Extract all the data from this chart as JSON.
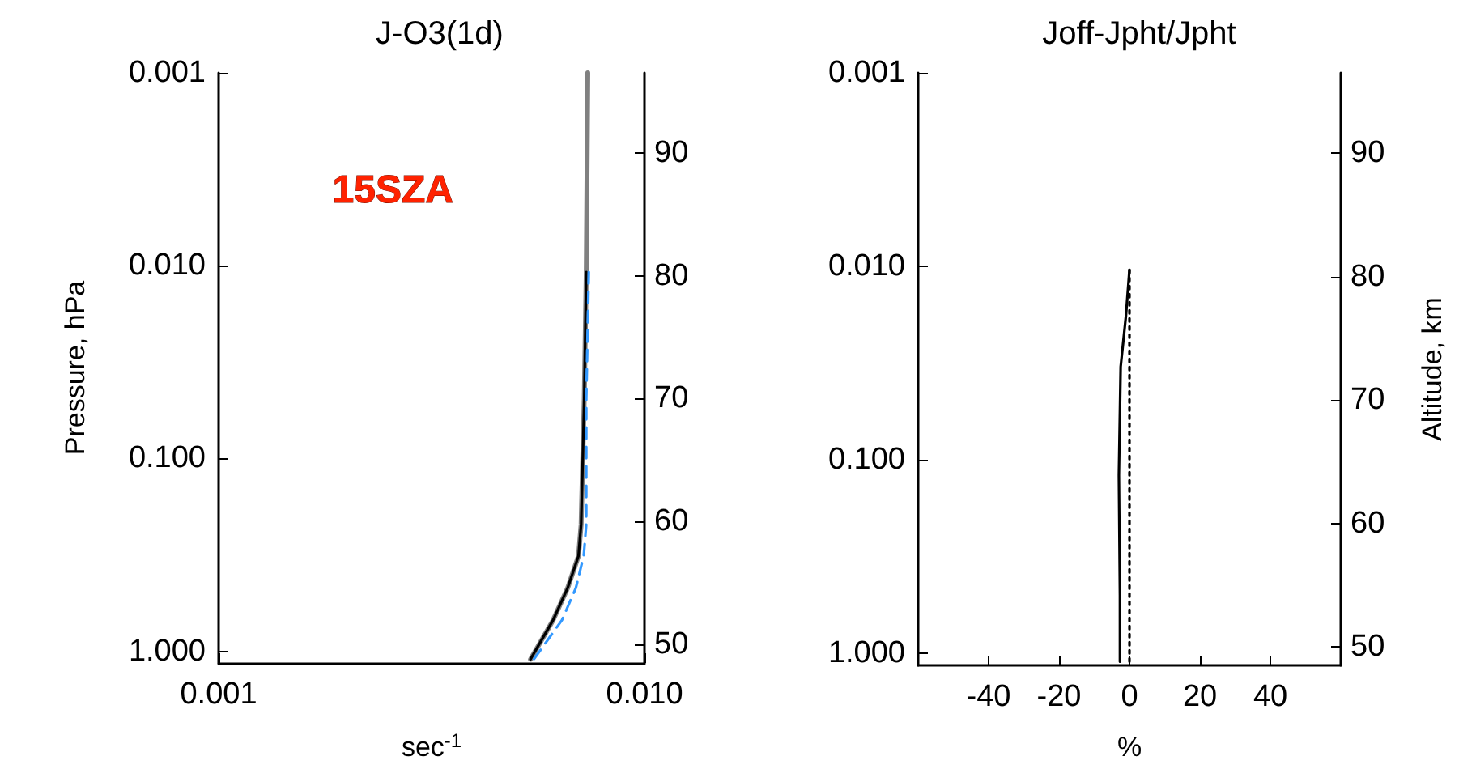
{
  "chart_data": [
    {
      "type": "line",
      "title": "J-O3(1d)",
      "xlabel": "sec$^{-1}$",
      "ylabel": "Pressure, hPa",
      "annotations": [
        "15SZA"
      ],
      "log": "xy",
      "marker": "none",
      "grid": false,
      "xlim": [
        0.001,
        0.01
      ],
      "xticks": [
        0.001,
        {
          "value": 0.01,
          "label": "0.010"
        }
      ],
      "ylim": [
        1.15,
        0.001
      ],
      "yticks": [
        0.001,
        {
          "value": 0.01,
          "label": "0.010"
        },
        {
          "value": 0.1,
          "label": "0.100"
        },
        {
          "value": 1,
          "label": "1.000"
        }
      ],
      "y2lim": [
        48.5,
        96.5
      ],
      "y2ticks": [
        50,
        60,
        70,
        80,
        90
      ],
      "series": [
        {
          "color": "#808080",
          "line_style": "solid",
          "x": [
            0.00736,
            0.0073,
            0.00722,
            0.0071,
            0.007,
            0.0066,
            0.0061,
            0.0054
          ],
          "values": [
            0.001,
            0.0108,
            0.049,
            0.22,
            0.32,
            0.47,
            0.69,
            1.1
          ]
        },
        {
          "color": "#000000",
          "line_style": "solid",
          "x": [
            0.0073,
            0.00722,
            0.0071,
            0.007,
            0.0066,
            0.0061,
            0.0054
          ],
          "values": [
            0.0108,
            0.049,
            0.22,
            0.32,
            0.47,
            0.69,
            1.1
          ]
        },
        {
          "color": "#3399ff",
          "line_style": "dashed",
          "x": [
            0.0074,
            0.0073,
            0.0073,
            0.0072,
            0.0069,
            0.0064,
            0.0055
          ],
          "values": [
            0.0108,
            0.049,
            0.22,
            0.32,
            0.47,
            0.69,
            1.1
          ]
        }
      ]
    },
    {
      "type": "line",
      "title": "Joff-Jpht/Jpht",
      "xlabel": "%",
      "y2label": "Altitude, km",
      "marker": "none",
      "grid": false,
      "log": "y",
      "xlim": [
        -60,
        60
      ],
      "xticks": [
        -40,
        -20,
        0,
        20,
        40
      ],
      "ylim": [
        1.15,
        0.001
      ],
      "yticks": [
        0.001,
        {
          "value": 0.01,
          "label": "0.010"
        },
        {
          "value": 0.1,
          "label": "0.100"
        },
        {
          "value": 1,
          "label": "1.000"
        }
      ],
      "y2lim": [
        48.5,
        96.5
      ],
      "y2ticks": [
        50,
        60,
        70,
        80,
        90
      ],
      "series": [
        {
          "color": "#000000",
          "line_style": "solid",
          "x": [
            0,
            -1,
            -2.5,
            -3,
            -2.7,
            -2.7
          ],
          "values": [
            0.0104,
            0.018,
            0.033,
            0.12,
            0.5,
            1.1
          ]
        },
        {
          "color": "#000000",
          "line_style": "dotted",
          "x": [
            0,
            0
          ],
          "values": [
            0.0104,
            1.1
          ]
        }
      ]
    }
  ]
}
